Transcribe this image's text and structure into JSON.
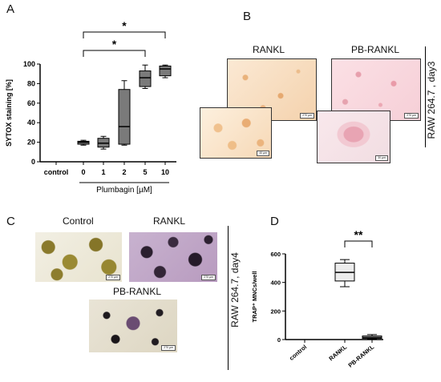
{
  "panels": {
    "A": {
      "letter": "A",
      "chart_data": {
        "type": "box",
        "categories": [
          "control",
          "0",
          "1",
          "2",
          "5",
          "10"
        ],
        "ylabel": "SYTOX staining [%]",
        "xlabel": "Plumbagin [µM]",
        "ylim": [
          0,
          100
        ],
        "yticks": [
          0,
          20,
          40,
          60,
          80,
          100
        ],
        "boxes": [
          null,
          {
            "min": 17,
            "q1": 18,
            "median": 20,
            "q3": 21,
            "max": 22
          },
          {
            "min": 13,
            "q1": 15,
            "median": 19,
            "q3": 24,
            "max": 26
          },
          {
            "min": 17,
            "q1": 18,
            "median": 36,
            "q3": 74,
            "max": 83
          },
          {
            "min": 75,
            "q1": 77,
            "median": 86,
            "q3": 93,
            "max": 99
          },
          {
            "min": 86,
            "q1": 88,
            "median": 95,
            "q3": 98,
            "max": 99
          }
        ],
        "box_color": "#7a7a7a",
        "significance": [
          {
            "from": "0",
            "to": "5",
            "label": "*"
          },
          {
            "from": "0",
            "to": "10",
            "label": "*"
          }
        ]
      }
    },
    "B": {
      "letter": "B",
      "left_title": "RANKL",
      "right_title": "PB-RANKL",
      "side_label": "RAW 264.7 , day3",
      "scales": [
        "270 µm",
        "40 µm",
        "270 µm",
        "30 µm"
      ]
    },
    "C": {
      "letter": "C",
      "title_control": "Control",
      "title_rankl": "RANKL",
      "title_pb": "PB-RANKL",
      "side_label": "RAW 264.7, day4",
      "scales": [
        "270 µm",
        "270 µm",
        "270 µm"
      ]
    },
    "D": {
      "letter": "D",
      "chart_data": {
        "type": "box",
        "categories": [
          "control",
          "RANKL",
          "PB-RANKL"
        ],
        "ylabel": "TRAP⁺ MNCs/well",
        "ylim": [
          0,
          600
        ],
        "yticks": [
          0,
          200,
          400,
          600
        ],
        "boxes": [
          null,
          {
            "min": 370,
            "q1": 410,
            "median": 470,
            "q3": 535,
            "max": 560
          },
          {
            "min": 3,
            "q1": 8,
            "median": 15,
            "q3": 25,
            "max": 35
          }
        ],
        "box_color": "#ececec",
        "significance": [
          {
            "from": "RANKL",
            "to": "PB-RANKL",
            "label": "**"
          }
        ]
      }
    }
  }
}
